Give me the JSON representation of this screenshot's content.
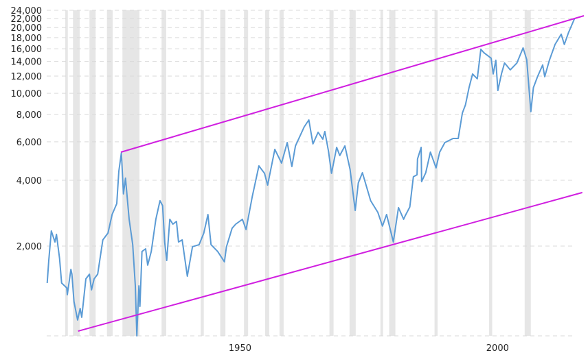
{
  "chart_data": {
    "type": "line",
    "title": "",
    "xlabel": "",
    "ylabel": "",
    "y_scale": "log",
    "xlim": [
      1915.2,
      2017.9
    ],
    "ylim": [
      776,
      24000
    ],
    "grid": "horizontal dashed",
    "x_tick_labels": [
      "1950",
      "2000"
    ],
    "x_ticks": [
      1950,
      2000
    ],
    "y_ticks": [
      24000,
      22000,
      20000,
      18000,
      16000,
      14000,
      12000,
      10000,
      8000,
      6000,
      4000,
      2000
    ],
    "y_tick_labels": [
      "24,000",
      "22,000",
      "20,000",
      "18,000",
      "16,000",
      "14,000",
      "12,000",
      "10,000",
      "8,000",
      "6,000",
      "4,000",
      "2,000"
    ],
    "colors": {
      "series": "#5b9bd5",
      "trendline": "#d01fe0",
      "recession": "#e6e6e6",
      "grid": "#d9d9d9"
    },
    "series": [
      {
        "points": [
          [
            1915.3,
            1354
          ],
          [
            1915.6,
            1718
          ],
          [
            1916.1,
            2345
          ],
          [
            1916.8,
            2088
          ],
          [
            1917.1,
            2262
          ],
          [
            1917.7,
            1756
          ],
          [
            1918.1,
            1354
          ],
          [
            1919.1,
            1287
          ],
          [
            1919.2,
            1197
          ],
          [
            1919.9,
            1564
          ],
          [
            1920.1,
            1487
          ],
          [
            1920.5,
            1114
          ],
          [
            1921.2,
            917
          ],
          [
            1921.7,
            1036
          ],
          [
            1922.0,
            944
          ],
          [
            1922.8,
            1414
          ],
          [
            1923.5,
            1487
          ],
          [
            1923.9,
            1260
          ],
          [
            1924.4,
            1414
          ],
          [
            1925.1,
            1487
          ],
          [
            1926.1,
            2134
          ],
          [
            1927.1,
            2294
          ],
          [
            1927.9,
            2788
          ],
          [
            1928.8,
            3130
          ],
          [
            1929.2,
            4396
          ],
          [
            1929.7,
            5344
          ],
          [
            1930.1,
            3464
          ],
          [
            1930.5,
            4090
          ],
          [
            1931.2,
            2652
          ],
          [
            1931.9,
            2030
          ],
          [
            1932.4,
            1315
          ],
          [
            1932.7,
            776
          ],
          [
            1933.1,
            1315
          ],
          [
            1933.3,
            1059
          ],
          [
            1933.7,
            1888
          ],
          [
            1934.4,
            1943
          ],
          [
            1934.8,
            1634
          ],
          [
            1935.5,
            1888
          ],
          [
            1936.4,
            2652
          ],
          [
            1937.2,
            3222
          ],
          [
            1937.7,
            3062
          ],
          [
            1938.1,
            2088
          ],
          [
            1938.5,
            1718
          ],
          [
            1939.1,
            2652
          ],
          [
            1939.7,
            2520
          ],
          [
            1940.4,
            2594
          ],
          [
            1940.8,
            2088
          ],
          [
            1941.5,
            2134
          ],
          [
            1942.5,
            1455
          ],
          [
            1943.5,
            1986
          ],
          [
            1944.8,
            2030
          ],
          [
            1945.7,
            2294
          ],
          [
            1946.5,
            2788
          ],
          [
            1947.1,
            2030
          ],
          [
            1948.4,
            1888
          ],
          [
            1949.7,
            1694
          ],
          [
            1950.1,
            1986
          ],
          [
            1951.2,
            2414
          ],
          [
            1951.9,
            2520
          ],
          [
            1953.2,
            2652
          ],
          [
            1953.9,
            2379
          ],
          [
            1955.1,
            3364
          ],
          [
            1956.4,
            4656
          ],
          [
            1957.5,
            4302
          ],
          [
            1958.1,
            3804
          ],
          [
            1959.5,
            5540
          ],
          [
            1960.8,
            4794
          ],
          [
            1961.9,
            5954
          ],
          [
            1962.8,
            4624
          ],
          [
            1963.5,
            5744
          ],
          [
            1965.2,
            7030
          ],
          [
            1966.1,
            7554
          ],
          [
            1966.9,
            5872
          ],
          [
            1967.9,
            6634
          ],
          [
            1968.8,
            6172
          ],
          [
            1969.2,
            6686
          ],
          [
            1969.9,
            5458
          ],
          [
            1970.5,
            4302
          ],
          [
            1971.5,
            5658
          ],
          [
            1972.1,
            5192
          ],
          [
            1973.1,
            5744
          ],
          [
            1974.1,
            4492
          ],
          [
            1975.1,
            2912
          ],
          [
            1975.7,
            3888
          ],
          [
            1976.5,
            4332
          ],
          [
            1978.1,
            3222
          ],
          [
            1979.5,
            2850
          ],
          [
            1980.4,
            2468
          ],
          [
            1981.2,
            2788
          ],
          [
            1982.5,
            2088
          ],
          [
            1983.5,
            2998
          ],
          [
            1984.5,
            2652
          ],
          [
            1984.8,
            2748
          ],
          [
            1985.7,
            3020
          ],
          [
            1986.4,
            4150
          ],
          [
            1987.1,
            4238
          ],
          [
            1987.2,
            5008
          ],
          [
            1987.9,
            5658
          ],
          [
            1988.0,
            3944
          ],
          [
            1988.8,
            4332
          ],
          [
            1989.7,
            5382
          ],
          [
            1990.8,
            4558
          ],
          [
            1991.5,
            5382
          ],
          [
            1992.5,
            5954
          ],
          [
            1994.1,
            6216
          ],
          [
            1995.1,
            6216
          ],
          [
            1995.9,
            8126
          ],
          [
            1996.5,
            8858
          ],
          [
            1997.2,
            10614
          ],
          [
            1997.9,
            12270
          ],
          [
            1998.8,
            11660
          ],
          [
            1999.5,
            15912
          ],
          [
            2000.1,
            15350
          ],
          [
            2001.5,
            14486
          ],
          [
            2001.9,
            12270
          ],
          [
            2002.4,
            14172
          ],
          [
            2002.8,
            10310
          ],
          [
            2003.5,
            12270
          ],
          [
            2004.1,
            13766
          ],
          [
            2005.2,
            12810
          ],
          [
            2006.5,
            13766
          ],
          [
            2007.7,
            16138
          ],
          [
            2008.4,
            14270
          ],
          [
            2009.2,
            8242
          ],
          [
            2009.7,
            10614
          ],
          [
            2010.5,
            11918
          ],
          [
            2011.5,
            13480
          ],
          [
            2011.9,
            11918
          ],
          [
            2012.8,
            14172
          ],
          [
            2013.9,
            16730
          ],
          [
            2015.1,
            18654
          ],
          [
            2015.7,
            16730
          ],
          [
            2016.5,
            18918
          ],
          [
            2017.7,
            22020
          ]
        ]
      }
    ],
    "trendlines": [
      {
        "from": [
          1929.6,
          5380
        ],
        "to": [
          2019.5,
          22650
        ]
      },
      {
        "from": [
          1921.3,
          816
        ],
        "to": [
          2019.2,
          3515
        ]
      }
    ],
    "recessions": [
      [
        1918.8,
        1919.3
      ],
      [
        1920.3,
        1921.6
      ],
      [
        1923.5,
        1924.7
      ],
      [
        1926.9,
        1928.0
      ],
      [
        1929.9,
        1933.2
      ],
      [
        1937.5,
        1938.4
      ],
      [
        1945.1,
        1945.7
      ],
      [
        1948.9,
        1949.9
      ],
      [
        1953.5,
        1954.3
      ],
      [
        1957.6,
        1958.4
      ],
      [
        1960.4,
        1961.2
      ],
      [
        1970.1,
        1970.9
      ],
      [
        1974.0,
        1975.2
      ],
      [
        1980.0,
        1980.5
      ],
      [
        1981.7,
        1982.9
      ],
      [
        1990.5,
        1991.1
      ],
      [
        2001.1,
        2001.7
      ],
      [
        2008.0,
        2009.2
      ]
    ]
  }
}
